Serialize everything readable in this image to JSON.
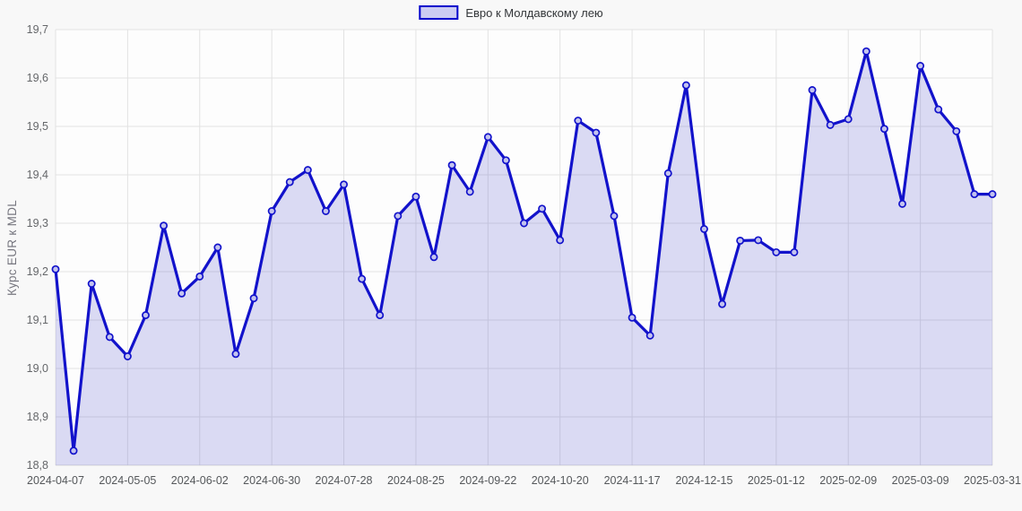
{
  "page": {
    "background": "#f8f8f8"
  },
  "legend": {
    "label": "Евро к Молдавскому лею"
  },
  "chart_data": {
    "type": "area",
    "title": "",
    "xlabel": "",
    "ylabel": "Курс EUR к MDL",
    "series_name": "Евро к Молдавскому лею",
    "legend_position": "top-center",
    "grid": true,
    "ylim": [
      18.8,
      19.7
    ],
    "y_tick_step": 0.1,
    "decimal_separator": ",",
    "x": [
      "2024-04-07",
      "2024-04-14",
      "2024-04-21",
      "2024-04-28",
      "2024-05-05",
      "2024-05-12",
      "2024-05-19",
      "2024-05-26",
      "2024-06-02",
      "2024-06-09",
      "2024-06-16",
      "2024-06-23",
      "2024-06-30",
      "2024-07-07",
      "2024-07-14",
      "2024-07-21",
      "2024-07-28",
      "2024-08-04",
      "2024-08-11",
      "2024-08-18",
      "2024-08-25",
      "2024-09-01",
      "2024-09-08",
      "2024-09-15",
      "2024-09-22",
      "2024-09-29",
      "2024-10-06",
      "2024-10-13",
      "2024-10-20",
      "2024-10-27",
      "2024-11-03",
      "2024-11-10",
      "2024-11-17",
      "2024-11-24",
      "2024-12-01",
      "2024-12-08",
      "2024-12-15",
      "2024-12-22",
      "2024-12-29",
      "2025-01-05",
      "2025-01-12",
      "2025-01-19",
      "2025-01-26",
      "2025-02-02",
      "2025-02-09",
      "2025-02-16",
      "2025-02-23",
      "2025-03-02",
      "2025-03-09",
      "2025-03-16",
      "2025-03-23",
      "2025-03-30",
      "2025-03-31"
    ],
    "values": [
      19.205,
      18.83,
      19.175,
      19.065,
      19.025,
      19.11,
      19.295,
      19.155,
      19.19,
      19.25,
      19.03,
      19.145,
      19.325,
      19.385,
      19.41,
      19.325,
      19.38,
      19.185,
      19.11,
      19.315,
      19.355,
      19.23,
      19.42,
      19.365,
      19.478,
      19.43,
      19.3,
      19.33,
      19.265,
      19.512,
      19.487,
      19.315,
      19.105,
      19.068,
      19.403,
      19.585,
      19.288,
      19.133,
      19.264,
      19.265,
      19.24,
      19.24,
      19.575,
      19.503,
      19.515,
      19.655,
      19.495,
      19.34,
      19.625,
      19.535,
      19.49,
      19.36,
      19.36
    ],
    "x_tick_indices": [
      0,
      4,
      8,
      12,
      16,
      20,
      24,
      28,
      32,
      36,
      40,
      44,
      48,
      52
    ],
    "colors": {
      "line": "#1212cb",
      "area": "#3c3cc8",
      "area_opacity": "0.18",
      "marker_fill": "#c3c3ee",
      "grid": "#e2e2e2",
      "axis_line": "#d9d9d9",
      "plot_bg": "#fdfdfd",
      "page_bg": "#f8f8f8",
      "legend_swatch_fill": "#ccccf2",
      "legend_swatch_border": "#0000cc"
    }
  }
}
